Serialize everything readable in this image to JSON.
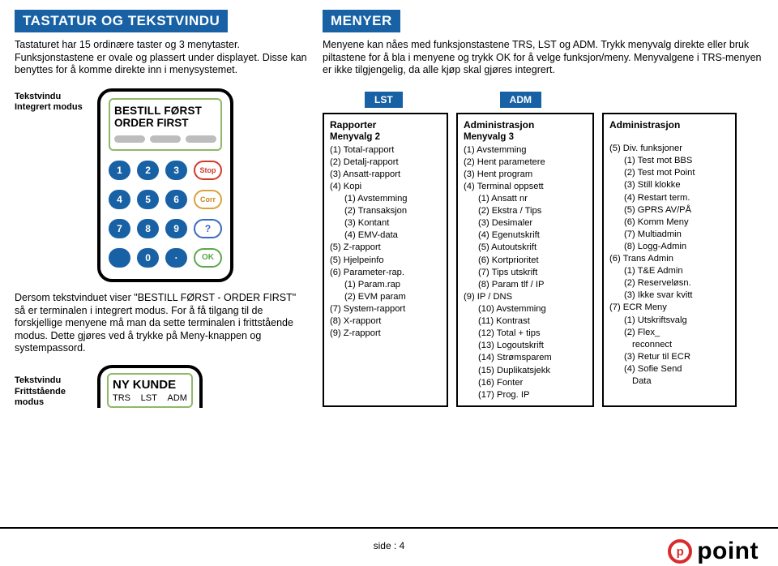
{
  "left": {
    "title": "TASTATUR OG TEKSTVINDU",
    "intro_l1": "Tastaturet har 15 ordinære taster og 3 menytaster.",
    "intro_l2": "Funksjonstastene er ovale og plassert under displayet. Disse kan benyttes for å komme direkte inn i menysystemet.",
    "tv1_label_l1": "Tekstvindu",
    "tv1_label_l2": "Integrert modus",
    "display_l1": "BESTILL FØRST",
    "display_l2": "ORDER FIRST",
    "keys": {
      "r1": [
        "1",
        "2",
        "3"
      ],
      "r2": [
        "4",
        "5",
        "6"
      ],
      "r3": [
        "7",
        "8",
        "9"
      ],
      "r4_mid": "0",
      "dot": "·",
      "stop": "Stop",
      "corr": "Corr",
      "q": "?",
      "ok": "OK"
    },
    "note": "Dersom tekstvinduet viser \"BESTILL FØRST - ORDER FIRST\" så er terminalen i integrert modus. For å få tilgang til de forskjellige menyene må man da sette terminalen i frittstående modus. Dette gjøres ved å trykke på Meny-knappen og systempassord.",
    "tv2_label_l1": "Tekstvindu",
    "tv2_label_l2": "Frittstående",
    "tv2_label_l3": "modus",
    "display2_title": "NY KUNDE",
    "display2_opts": [
      "TRS",
      "LST",
      "ADM"
    ]
  },
  "right": {
    "title": "MENYER",
    "intro": "Menyene kan nåes med funksjonstastene TRS, LST og ADM. Trykk menyvalg direkte eller bruk piltastene for å bla i menyene og trykk OK for å velge funksjon/meny. Menyvalgene i TRS-menyen er ikke tilgjengelig, da alle kjøp skal gjøres integrert.",
    "tabs": {
      "lst": "LST",
      "adm": "ADM"
    },
    "box1": {
      "title": "Rapporter",
      "sub": "Menyvalg 2",
      "items": [
        "(1) Total-rapport",
        "(2) Detalj-rapport",
        "(3) Ansatt-rapport",
        "(4) Kopi",
        "    (1) Avstemming",
        "    (2) Transaksjon",
        "    (3) Kontant",
        "    (4) EMV-data",
        "(5) Z-rapport",
        "(5) Hjelpeinfo",
        "(6) Parameter-rap.",
        "    (1) Param.rap",
        "    (2) EVM param",
        "(7) System-rapport",
        "(8) X-rapport",
        "(9) Z-rapport"
      ]
    },
    "box2": {
      "title": "Administrasjon",
      "sub": "Menyvalg 3",
      "items": [
        "(1) Avstemming",
        "(2) Hent parametere",
        "(3) Hent program",
        "(4) Terminal oppsett",
        "    (1) Ansatt nr",
        "    (2) Ekstra / Tips",
        "    (3) Desimaler",
        "    (4) Egenutskrift",
        "    (5) Autoutskrift",
        "    (6) Kortprioritet",
        "    (7) Tips utskrift",
        "    (8) Param tlf / IP",
        "(9) IP / DNS",
        "    (10) Avstemming",
        "    (11) Kontrast",
        "    (12) Total + tips",
        "    (13) Logoutskrift",
        "    (14) Strømsparem",
        "    (15) Duplikatsjekk",
        "    (16) Fonter",
        "    (17) Prog. IP"
      ]
    },
    "box3": {
      "title": "Administrasjon",
      "items": [
        "(5) Div. funksjoner",
        "    (1) Test mot BBS",
        "    (2) Test mot Point",
        "    (3) Still klokke",
        "    (4) Restart term.",
        "    (5) GPRS AV/PÅ",
        "    (6) Komm Meny",
        "    (7) Multiadmin",
        "    (8) Logg-Admin",
        "(6) Trans Admin",
        "    (1) T&E Admin",
        "    (2) Reserveløsn.",
        "    (3) Ikke svar kvitt",
        "(7) ECR Meny",
        "    (1) Utskriftsvalg",
        "    (2) Flex_",
        "         reconnect",
        "    (3) Retur til ECR",
        "    (4) Sofie Send",
        "         Data"
      ]
    }
  },
  "footer": {
    "page": "side : 4",
    "logo_letter": "p",
    "logo_text": "point"
  },
  "colors": {
    "blue": "#1861a5",
    "green_border": "#8fb968",
    "red": "#d82c2c",
    "key_grey": "#bdbdbd"
  }
}
